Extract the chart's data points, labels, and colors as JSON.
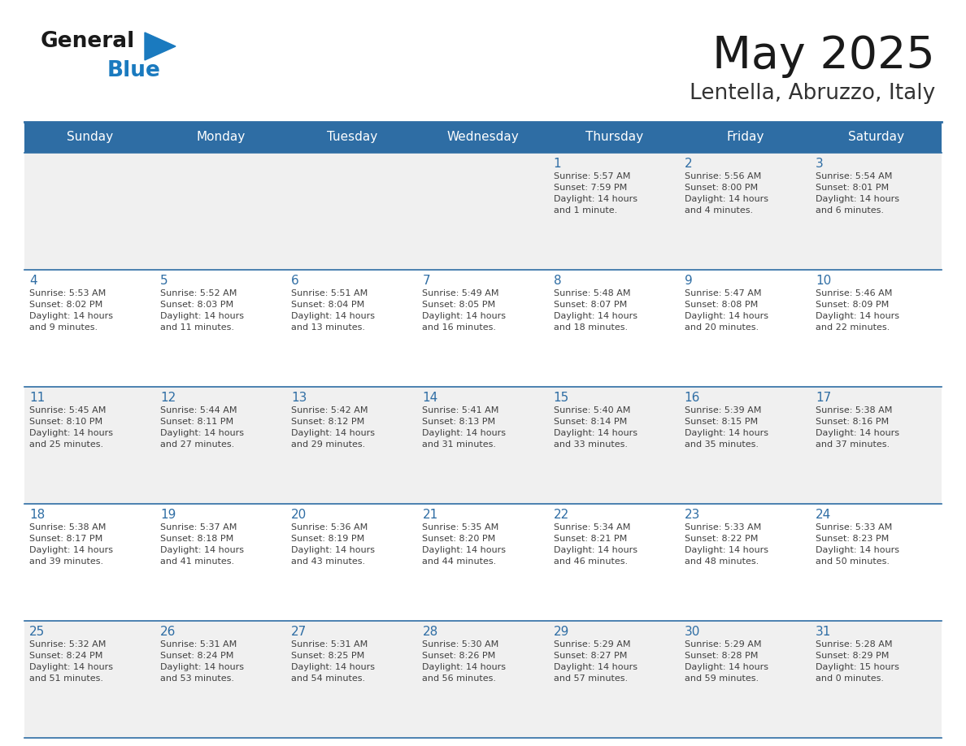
{
  "title": "May 2025",
  "subtitle": "Lentella, Abruzzo, Italy",
  "header_bg": "#2E6DA4",
  "header_text": "#FFFFFF",
  "cell_bg_odd": "#F0F0F0",
  "cell_bg_even": "#FFFFFF",
  "day_number_color": "#2E6DA4",
  "text_color": "#404040",
  "line_color": "#2E6DA4",
  "days_of_week": [
    "Sunday",
    "Monday",
    "Tuesday",
    "Wednesday",
    "Thursday",
    "Friday",
    "Saturday"
  ],
  "weeks": [
    [
      {
        "day": "",
        "info": ""
      },
      {
        "day": "",
        "info": ""
      },
      {
        "day": "",
        "info": ""
      },
      {
        "day": "",
        "info": ""
      },
      {
        "day": "1",
        "info": "Sunrise: 5:57 AM\nSunset: 7:59 PM\nDaylight: 14 hours\nand 1 minute."
      },
      {
        "day": "2",
        "info": "Sunrise: 5:56 AM\nSunset: 8:00 PM\nDaylight: 14 hours\nand 4 minutes."
      },
      {
        "day": "3",
        "info": "Sunrise: 5:54 AM\nSunset: 8:01 PM\nDaylight: 14 hours\nand 6 minutes."
      }
    ],
    [
      {
        "day": "4",
        "info": "Sunrise: 5:53 AM\nSunset: 8:02 PM\nDaylight: 14 hours\nand 9 minutes."
      },
      {
        "day": "5",
        "info": "Sunrise: 5:52 AM\nSunset: 8:03 PM\nDaylight: 14 hours\nand 11 minutes."
      },
      {
        "day": "6",
        "info": "Sunrise: 5:51 AM\nSunset: 8:04 PM\nDaylight: 14 hours\nand 13 minutes."
      },
      {
        "day": "7",
        "info": "Sunrise: 5:49 AM\nSunset: 8:05 PM\nDaylight: 14 hours\nand 16 minutes."
      },
      {
        "day": "8",
        "info": "Sunrise: 5:48 AM\nSunset: 8:07 PM\nDaylight: 14 hours\nand 18 minutes."
      },
      {
        "day": "9",
        "info": "Sunrise: 5:47 AM\nSunset: 8:08 PM\nDaylight: 14 hours\nand 20 minutes."
      },
      {
        "day": "10",
        "info": "Sunrise: 5:46 AM\nSunset: 8:09 PM\nDaylight: 14 hours\nand 22 minutes."
      }
    ],
    [
      {
        "day": "11",
        "info": "Sunrise: 5:45 AM\nSunset: 8:10 PM\nDaylight: 14 hours\nand 25 minutes."
      },
      {
        "day": "12",
        "info": "Sunrise: 5:44 AM\nSunset: 8:11 PM\nDaylight: 14 hours\nand 27 minutes."
      },
      {
        "day": "13",
        "info": "Sunrise: 5:42 AM\nSunset: 8:12 PM\nDaylight: 14 hours\nand 29 minutes."
      },
      {
        "day": "14",
        "info": "Sunrise: 5:41 AM\nSunset: 8:13 PM\nDaylight: 14 hours\nand 31 minutes."
      },
      {
        "day": "15",
        "info": "Sunrise: 5:40 AM\nSunset: 8:14 PM\nDaylight: 14 hours\nand 33 minutes."
      },
      {
        "day": "16",
        "info": "Sunrise: 5:39 AM\nSunset: 8:15 PM\nDaylight: 14 hours\nand 35 minutes."
      },
      {
        "day": "17",
        "info": "Sunrise: 5:38 AM\nSunset: 8:16 PM\nDaylight: 14 hours\nand 37 minutes."
      }
    ],
    [
      {
        "day": "18",
        "info": "Sunrise: 5:38 AM\nSunset: 8:17 PM\nDaylight: 14 hours\nand 39 minutes."
      },
      {
        "day": "19",
        "info": "Sunrise: 5:37 AM\nSunset: 8:18 PM\nDaylight: 14 hours\nand 41 minutes."
      },
      {
        "day": "20",
        "info": "Sunrise: 5:36 AM\nSunset: 8:19 PM\nDaylight: 14 hours\nand 43 minutes."
      },
      {
        "day": "21",
        "info": "Sunrise: 5:35 AM\nSunset: 8:20 PM\nDaylight: 14 hours\nand 44 minutes."
      },
      {
        "day": "22",
        "info": "Sunrise: 5:34 AM\nSunset: 8:21 PM\nDaylight: 14 hours\nand 46 minutes."
      },
      {
        "day": "23",
        "info": "Sunrise: 5:33 AM\nSunset: 8:22 PM\nDaylight: 14 hours\nand 48 minutes."
      },
      {
        "day": "24",
        "info": "Sunrise: 5:33 AM\nSunset: 8:23 PM\nDaylight: 14 hours\nand 50 minutes."
      }
    ],
    [
      {
        "day": "25",
        "info": "Sunrise: 5:32 AM\nSunset: 8:24 PM\nDaylight: 14 hours\nand 51 minutes."
      },
      {
        "day": "26",
        "info": "Sunrise: 5:31 AM\nSunset: 8:24 PM\nDaylight: 14 hours\nand 53 minutes."
      },
      {
        "day": "27",
        "info": "Sunrise: 5:31 AM\nSunset: 8:25 PM\nDaylight: 14 hours\nand 54 minutes."
      },
      {
        "day": "28",
        "info": "Sunrise: 5:30 AM\nSunset: 8:26 PM\nDaylight: 14 hours\nand 56 minutes."
      },
      {
        "day": "29",
        "info": "Sunrise: 5:29 AM\nSunset: 8:27 PM\nDaylight: 14 hours\nand 57 minutes."
      },
      {
        "day": "30",
        "info": "Sunrise: 5:29 AM\nSunset: 8:28 PM\nDaylight: 14 hours\nand 59 minutes."
      },
      {
        "day": "31",
        "info": "Sunrise: 5:28 AM\nSunset: 8:29 PM\nDaylight: 15 hours\nand 0 minutes."
      }
    ]
  ],
  "logo_general_color": "#1a1a1a",
  "logo_blue_color": "#1a7abf",
  "logo_triangle_color": "#1a7abf",
  "title_color": "#1a1a1a",
  "subtitle_color": "#333333"
}
